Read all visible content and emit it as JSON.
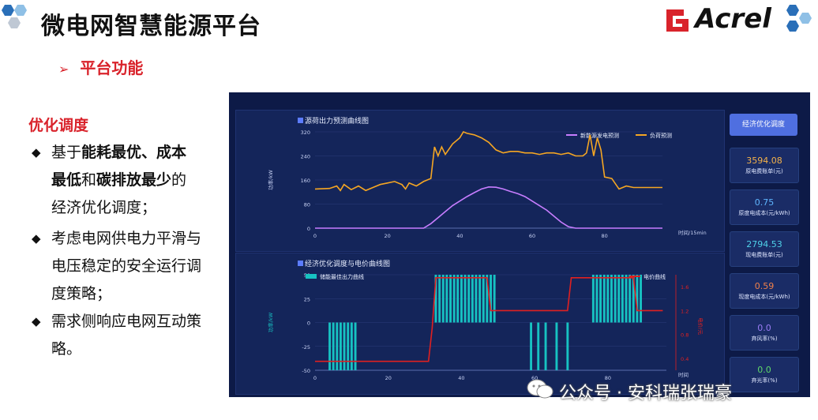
{
  "header": {
    "title": "微电网智慧能源平台",
    "logo_text": "Acrel",
    "brand_color": "#d9232b"
  },
  "section": {
    "heading": "平台功能",
    "marker": "➢"
  },
  "left": {
    "title": "优化调度",
    "bullet_icon": "◆",
    "bullets": [
      {
        "segments": [
          [
            "基于",
            false
          ],
          [
            "能耗最优、成本最低",
            true
          ],
          [
            "和",
            false
          ],
          [
            "碳排放最少",
            true
          ],
          [
            "的经济优化调度；",
            false
          ]
        ]
      },
      {
        "segments": [
          [
            "考虑电网供电力平滑与电压稳定的安全运行调度策略；",
            false
          ]
        ]
      },
      {
        "segments": [
          [
            "需求侧响应电网互动策略。",
            false
          ]
        ]
      }
    ]
  },
  "dashboard": {
    "optimize_button": "经济优化调度",
    "cards": [
      {
        "value": "3594.08",
        "label": "原电费账单(元)",
        "color": "#f4b24a"
      },
      {
        "value": "0.75",
        "label": "原度电成本(元/kWh)",
        "color": "#5fb6ff"
      },
      {
        "value": "2794.53",
        "label": "现电费账单(元)",
        "color": "#4fd1e8"
      },
      {
        "value": "0.59",
        "label": "现度电成本(元/kWh)",
        "color": "#f0804a"
      },
      {
        "value": "0.0",
        "label": "弃风率(%)",
        "color": "#9a7cf5"
      },
      {
        "value": "0.0",
        "label": "弃光率(%)",
        "color": "#5fd86a"
      }
    ]
  },
  "chart_data": [
    {
      "type": "line",
      "title": "源荷出力预测曲线图",
      "xlabel": "时间/15min",
      "ylabel": "功率/kW",
      "xlim": [
        0,
        96
      ],
      "ylim": [
        0,
        320
      ],
      "xticks": [
        0,
        20,
        40,
        60,
        80
      ],
      "yticks": [
        0,
        80,
        160,
        240,
        320
      ],
      "legend_position": "top-right",
      "series": [
        {
          "name": "新能源发电预测",
          "color": "#c77dff",
          "x": [
            0,
            30,
            32,
            34,
            36,
            38,
            40,
            42,
            44,
            46,
            48,
            50,
            52,
            54,
            56,
            58,
            60,
            62,
            64,
            66,
            68,
            70,
            72,
            96
          ],
          "y": [
            0,
            0,
            15,
            35,
            55,
            75,
            90,
            105,
            118,
            130,
            137,
            136,
            130,
            122,
            115,
            105,
            90,
            75,
            60,
            40,
            20,
            5,
            0,
            0
          ]
        },
        {
          "name": "负荷预测",
          "color": "#f5a623",
          "x": [
            0,
            4,
            6,
            7,
            8,
            10,
            12,
            14,
            16,
            18,
            20,
            22,
            24,
            25,
            26,
            28,
            30,
            32,
            33,
            34,
            35,
            36,
            38,
            40,
            41,
            42,
            44,
            46,
            48,
            50,
            52,
            54,
            56,
            58,
            60,
            62,
            64,
            66,
            68,
            70,
            72,
            74,
            75,
            76,
            77,
            78,
            79,
            80,
            82,
            84,
            86,
            88,
            90,
            92,
            94,
            96
          ],
          "y": [
            130,
            132,
            140,
            125,
            145,
            128,
            140,
            125,
            135,
            145,
            150,
            155,
            145,
            130,
            150,
            140,
            155,
            165,
            270,
            240,
            270,
            245,
            280,
            300,
            320,
            315,
            310,
            300,
            285,
            260,
            250,
            255,
            255,
            250,
            250,
            245,
            250,
            250,
            245,
            250,
            240,
            240,
            250,
            310,
            240,
            300,
            260,
            170,
            165,
            130,
            140,
            135,
            135,
            135,
            135,
            135
          ]
        }
      ]
    },
    {
      "type": "bar",
      "title": "经济优化调度与电价曲线图",
      "xlabel": "时间",
      "ylabel": "功率/kW",
      "y2label": "电价/元",
      "xlim": [
        0,
        96
      ],
      "ylim": [
        -50,
        50
      ],
      "y2lim": [
        0.2,
        1.8
      ],
      "xticks": [
        0,
        20,
        40,
        60,
        80
      ],
      "yticks": [
        -50,
        -25,
        0,
        25,
        50
      ],
      "y2ticks": [
        0.4,
        0.8,
        1.2,
        1.6
      ],
      "legend_position": "top",
      "series": [
        {
          "name": "储能最佳出力曲线",
          "color": "#17c2c2",
          "x": [
            4,
            5,
            6,
            7,
            8,
            9,
            10,
            11,
            33,
            34,
            35,
            36,
            37,
            38,
            39,
            40,
            41,
            42,
            43,
            44,
            45,
            46,
            47,
            48,
            49,
            54,
            55,
            56,
            57,
            58,
            59,
            60,
            61,
            62,
            63,
            64,
            65,
            66,
            67,
            68,
            69,
            70,
            71,
            72,
            73,
            74,
            75,
            76,
            77,
            78,
            79,
            80,
            81,
            82,
            83,
            84,
            85,
            86,
            87,
            88,
            89
          ],
          "y": [
            -50,
            -50,
            -50,
            -50,
            -50,
            -50,
            -50,
            -50,
            50,
            50,
            50,
            50,
            50,
            50,
            50,
            50,
            50,
            50,
            50,
            50,
            50,
            50,
            50,
            50,
            50,
            0,
            0,
            0,
            0,
            0,
            -50,
            0,
            -50,
            0,
            -50,
            0,
            0,
            -50,
            0,
            0,
            -50,
            0,
            0,
            0,
            0,
            0,
            0,
            50,
            50,
            50,
            50,
            50,
            50,
            50,
            50,
            50,
            50,
            50,
            50,
            50,
            50
          ]
        },
        {
          "name": "电价曲线",
          "color": "#e02020",
          "x": [
            0,
            31,
            32,
            33,
            47,
            48,
            49,
            64,
            65,
            66,
            67,
            68,
            69,
            70,
            71,
            86,
            87,
            88,
            95
          ],
          "y": [
            0.35,
            0.35,
            0.9,
            1.75,
            1.75,
            1.2,
            1.2,
            1.2,
            1.2,
            1.2,
            1.2,
            1.2,
            1.2,
            1.75,
            1.75,
            1.75,
            1.75,
            1.2,
            1.2
          ]
        }
      ]
    }
  ]
}
